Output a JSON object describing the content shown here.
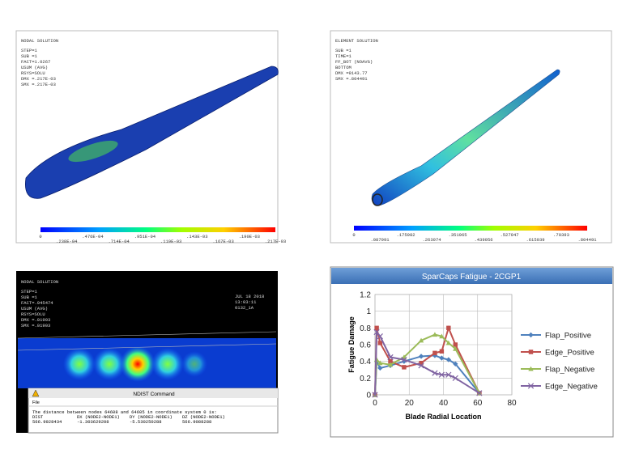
{
  "panels": [
    {
      "header": [
        "NODAL SOLUTION",
        "STEP=1",
        "SUB =1",
        "FACT=1.0267",
        "USUM      (AVG)",
        "RSYS=SOLU",
        "DMX =.217E-03",
        "SMX =.217E-03"
      ],
      "colorbar_top": [
        "0",
        ".476E-04",
        ".951E-04",
        ".143E-03",
        ".190E-03"
      ],
      "colorbar_bottom": [
        ".238E-04",
        ".714E-04",
        ".119E-03",
        ".167E-03",
        ".217E-03"
      ]
    },
    {
      "header": [
        "ELEMENT SOLUTION",
        "SUB =1",
        "TIME=1",
        "FF_BOT    (NOAVG)",
        "BOTTOM",
        "DMX =9143.77",
        "SMX =.804491"
      ],
      "colorbar_top": [
        "0",
        ".175982",
        ".351965",
        ".527947",
        ".70393"
      ],
      "colorbar_bottom": [
        ".087991",
        ".263974",
        ".439956",
        ".615939",
        ".804491"
      ]
    },
    {
      "header": [
        "NODAL SOLUTION",
        "STEP=1",
        "SUB =1",
        "FACT=.945474",
        "USUM      (AVG)",
        "RSYS=SOLU",
        "DMX =.01903",
        "SMX =.01903"
      ],
      "stamp": [
        "JUL 18 2018",
        "13:03:11",
        "0132_1A"
      ],
      "dialog": {
        "title": "NDIST Command",
        "menu": "File",
        "message": "The distance between nodes   64608 and   64605 in coordinate system     0 is:",
        "columns": [
          "DIST",
          "DX (NODE2-NODE1)",
          "DY (NODE2-NODE1)",
          "DZ (NODE2-NODE1)"
        ],
        "values": [
          "566.9928434",
          "-1.303629208",
          "-5.530250288",
          "566.9088288"
        ]
      }
    }
  ],
  "chart_data": {
    "type": "line",
    "title": "SparCaps Fatigue - 2CGP1",
    "x_label": "Blade Radial Location",
    "y_label": "Fatigue Damage",
    "x": [
      0,
      1,
      3,
      9,
      17,
      27,
      35,
      39,
      43,
      47,
      61
    ],
    "series": [
      {
        "name": "Flap_Positive",
        "color": "#4f81bd",
        "marker": "diamond",
        "values": [
          0,
          0.4,
          0.32,
          0.35,
          0.4,
          0.46,
          0.47,
          0.44,
          0.42,
          0.37,
          0.02
        ]
      },
      {
        "name": "Edge_Positive",
        "color": "#c0504d",
        "marker": "square",
        "values": [
          0,
          0.8,
          0.62,
          0.4,
          0.33,
          0.38,
          0.5,
          0.52,
          0.8,
          0.6,
          0.02
        ]
      },
      {
        "name": "Flap_Negative",
        "color": "#9bbb59",
        "marker": "triangle",
        "values": [
          0,
          0.42,
          0.38,
          0.36,
          0.45,
          0.65,
          0.72,
          0.7,
          0.62,
          0.55,
          0.02
        ]
      },
      {
        "name": "Edge_Negative",
        "color": "#8064a2",
        "marker": "x",
        "values": [
          0,
          0.75,
          0.7,
          0.45,
          0.42,
          0.35,
          0.26,
          0.24,
          0.24,
          0.2,
          0.02
        ]
      }
    ],
    "xlim": [
      0,
      80
    ],
    "xticks": [
      0,
      20,
      40,
      60,
      80
    ],
    "ylim": [
      0,
      1.2
    ],
    "yticks": [
      0,
      0.2,
      0.4,
      0.6,
      0.8,
      1,
      1.2
    ],
    "grid": true,
    "legend": "right"
  }
}
